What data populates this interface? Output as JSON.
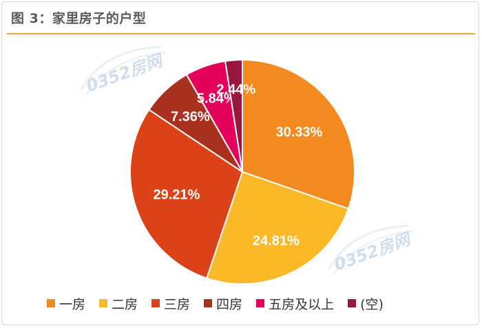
{
  "figure": {
    "title": "图 3：家里房子的户型"
  },
  "watermark": {
    "text": "0352房网"
  },
  "colors": {
    "title_rule": "#e8a33a"
  },
  "chart_data": {
    "type": "pie",
    "title": "图 3：家里房子的户型",
    "start_angle_deg": 0,
    "direction": "clockwise",
    "legend_position": "bottom",
    "slices": [
      {
        "label": "一房",
        "value": 30.33,
        "display": "30.33%",
        "color": "#f28a1f"
      },
      {
        "label": "二房",
        "value": 24.81,
        "display": "24.81%",
        "color": "#fbb928"
      },
      {
        "label": "三房",
        "value": 29.21,
        "display": "29.21%",
        "color": "#dc4218"
      },
      {
        "label": "四房",
        "value": 7.36,
        "display": "7.36%",
        "color": "#a8321f"
      },
      {
        "label": "五房及以上",
        "value": 5.84,
        "display": "5.84%",
        "color": "#e4005a"
      },
      {
        "label": "(空)",
        "value": 2.44,
        "display": "2.44%",
        "color": "#99173c"
      }
    ]
  }
}
